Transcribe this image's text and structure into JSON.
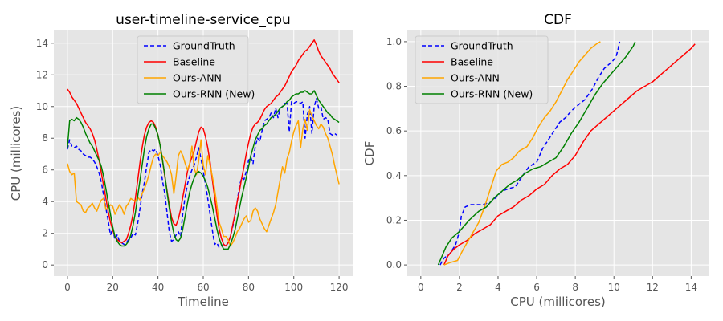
{
  "colors": {
    "ground_truth": "#0000ff",
    "baseline": "#ff0000",
    "ours_ann": "#ffa500",
    "ours_rnn": "#008000",
    "plot_background": "#e5e5e5",
    "grid": "#ffffff"
  },
  "chart_data": [
    {
      "type": "line",
      "title": "user-timeline-service_cpu",
      "xlabel": "Timeline",
      "ylabel": "CPU (millicores)",
      "xlim": [
        -6,
        126
      ],
      "ylim": [
        -0.7,
        14.8
      ],
      "xticks": [
        0,
        20,
        40,
        60,
        80,
        100,
        120
      ],
      "yticks": [
        0,
        2,
        4,
        6,
        8,
        10,
        12,
        14
      ],
      "grid": true,
      "legend_position": "upper-center",
      "x_start": 0,
      "x_step": 1,
      "series": [
        {
          "name": "GroundTruth",
          "color_key": "ground_truth",
          "dash": "dashed",
          "values": [
            7.3,
            7.9,
            7.5,
            7.4,
            7.5,
            7.3,
            7.2,
            7.0,
            6.9,
            6.8,
            6.8,
            6.7,
            6.5,
            6.2,
            5.8,
            5.2,
            4.4,
            3.6,
            2.8,
            1.9,
            2.3,
            1.6,
            1.9,
            1.5,
            1.4,
            1.3,
            1.4,
            1.6,
            1.7,
            2.0,
            1.9,
            2.6,
            3.5,
            4.5,
            5.2,
            6.2,
            7.1,
            7.3,
            7.2,
            7.3,
            6.9,
            6.3,
            5.3,
            4.5,
            3.3,
            2.1,
            1.5,
            1.6,
            1.9,
            2.1,
            1.8,
            3.3,
            4.3,
            5.1,
            5.6,
            6.0,
            6.3,
            6.8,
            7.4,
            6.7,
            5.9,
            5.1,
            4.2,
            3.2,
            2.2,
            1.3,
            1.4,
            1.1,
            1.2,
            1.3,
            1.2,
            1.4,
            1.8,
            2.4,
            3.1,
            4.0,
            5.0,
            5.5,
            5.4,
            5.9,
            6.6,
            6.8,
            6.4,
            7.5,
            8.0,
            7.8,
            8.5,
            9.1,
            9.2,
            9.3,
            9.6,
            9.3,
            9.9,
            9.3,
            9.9,
            10.0,
            10.2,
            10.2,
            8.4,
            10.3,
            10.2,
            10.3,
            10.3,
            10.2,
            10.3,
            8.0,
            9.5,
            10.0,
            8.3,
            10.0,
            10.5,
            9.9,
            10.0,
            9.2,
            9.3,
            9.2,
            8.3,
            8.2,
            8.3,
            8.2
          ]
        },
        {
          "name": "Baseline",
          "color_key": "baseline",
          "dash": "solid",
          "values": [
            11.1,
            10.9,
            10.6,
            10.4,
            10.2,
            9.9,
            9.6,
            9.3,
            9.0,
            8.8,
            8.6,
            8.3,
            7.9,
            7.3,
            6.6,
            5.8,
            5.0,
            4.2,
            3.4,
            2.7,
            2.2,
            1.8,
            1.6,
            1.5,
            1.4,
            1.5,
            1.6,
            2.0,
            2.5,
            3.2,
            4.2,
            5.3,
            6.4,
            7.4,
            8.2,
            8.7,
            9.0,
            9.1,
            9.0,
            8.7,
            8.2,
            7.5,
            6.6,
            5.6,
            4.7,
            3.8,
            3.0,
            2.6,
            2.5,
            2.9,
            3.5,
            4.3,
            5.1,
            5.9,
            6.4,
            6.8,
            7.2,
            7.8,
            8.4,
            8.7,
            8.6,
            8.1,
            7.4,
            6.5,
            5.4,
            4.3,
            3.2,
            2.3,
            1.7,
            1.3,
            1.2,
            1.4,
            1.8,
            2.5,
            3.2,
            4.0,
            4.7,
            5.5,
            6.2,
            7.0,
            7.7,
            8.3,
            8.7,
            8.9,
            9.0,
            9.2,
            9.5,
            9.8,
            10.0,
            10.1,
            10.2,
            10.4,
            10.6,
            10.7,
            10.9,
            11.1,
            11.3,
            11.6,
            11.9,
            12.2,
            12.4,
            12.6,
            12.9,
            13.1,
            13.3,
            13.5,
            13.6,
            13.8,
            14.0,
            14.2,
            13.9,
            13.5,
            13.2,
            13.0,
            12.8,
            12.6,
            12.4,
            12.1,
            11.9,
            11.7,
            11.5
          ]
        },
        {
          "name": "Ours-ANN",
          "color_key": "ours_ann",
          "dash": "solid",
          "values": [
            6.4,
            5.9,
            5.7,
            5.8,
            4.0,
            3.9,
            3.8,
            3.4,
            3.3,
            3.6,
            3.7,
            3.9,
            3.6,
            3.4,
            3.8,
            4.1,
            4.2,
            3.5,
            3.6,
            3.8,
            3.7,
            3.2,
            3.5,
            3.8,
            3.6,
            3.2,
            3.7,
            3.9,
            4.2,
            4.1,
            4.0,
            4.3,
            4.1,
            4.5,
            4.8,
            5.2,
            5.7,
            6.3,
            6.8,
            7.0,
            6.9,
            7.1,
            6.9,
            6.7,
            6.5,
            6.2,
            5.7,
            4.5,
            5.6,
            6.9,
            7.2,
            6.9,
            6.4,
            6.0,
            6.4,
            7.5,
            6.1,
            5.7,
            6.6,
            7.9,
            6.3,
            5.7,
            6.9,
            6.3,
            5.6,
            4.8,
            3.8,
            2.7,
            2.3,
            1.8,
            1.8,
            1.6,
            1.2,
            1.4,
            1.7,
            2.1,
            2.3,
            2.6,
            2.9,
            3.1,
            2.7,
            2.8,
            3.4,
            3.6,
            3.4,
            2.9,
            2.6,
            2.3,
            2.1,
            2.5,
            2.9,
            3.3,
            3.8,
            4.6,
            5.4,
            6.2,
            5.8,
            6.7,
            7.1,
            7.8,
            8.4,
            8.8,
            9.1,
            7.4,
            8.6,
            9.2,
            8.5,
            9.8,
            9.4,
            9.1,
            8.8,
            8.6,
            8.9,
            8.7,
            8.3,
            8.0,
            7.5,
            7.0,
            6.3,
            5.7,
            5.1
          ]
        },
        {
          "name": "Ours-RNN (New)",
          "color_key": "ours_rnn",
          "dash": "solid",
          "values": [
            7.4,
            9.1,
            9.2,
            9.1,
            9.3,
            9.2,
            9.0,
            8.7,
            8.3,
            8.0,
            7.7,
            7.5,
            7.2,
            6.9,
            6.6,
            6.2,
            5.6,
            4.8,
            4.0,
            3.2,
            2.4,
            1.8,
            1.5,
            1.3,
            1.2,
            1.2,
            1.3,
            1.5,
            1.9,
            2.5,
            3.3,
            4.3,
            5.3,
            6.3,
            7.3,
            8.1,
            8.6,
            8.9,
            8.9,
            8.6,
            8.2,
            7.5,
            6.6,
            5.7,
            4.6,
            3.6,
            2.7,
            2.0,
            1.6,
            1.5,
            1.7,
            2.3,
            3.1,
            3.9,
            4.6,
            5.1,
            5.5,
            5.8,
            5.9,
            5.8,
            5.6,
            5.3,
            4.9,
            4.3,
            3.7,
            3.0,
            2.3,
            1.7,
            1.3,
            1.0,
            1.0,
            1.0,
            1.3,
            1.7,
            2.2,
            2.9,
            3.6,
            4.3,
            4.9,
            5.5,
            6.2,
            6.9,
            7.4,
            7.9,
            8.2,
            8.5,
            8.6,
            8.8,
            8.9,
            9.1,
            9.3,
            9.4,
            9.5,
            9.7,
            9.9,
            10.0,
            10.1,
            10.3,
            10.4,
            10.6,
            10.7,
            10.8,
            10.8,
            10.9,
            10.9,
            11.0,
            10.9,
            10.8,
            10.8,
            11.0,
            10.7,
            10.4,
            10.2,
            10.0,
            9.8,
            9.6,
            9.5,
            9.3,
            9.2,
            9.1,
            9.0
          ]
        }
      ]
    },
    {
      "type": "line",
      "title": "CDF",
      "xlabel": "CPU (millicores)",
      "ylabel": "CDF",
      "xlim": [
        -0.7,
        14.9
      ],
      "ylim": [
        -0.05,
        1.05
      ],
      "xticks": [
        0,
        2,
        4,
        6,
        8,
        10,
        12,
        14
      ],
      "yticks": [
        0.0,
        0.2,
        0.4,
        0.6,
        0.8,
        1.0
      ],
      "ytick_labels": [
        "0.0",
        "0.2",
        "0.4",
        "0.6",
        "0.8",
        "1.0"
      ],
      "grid": true,
      "legend_position": "upper-left",
      "series": [
        {
          "name": "GroundTruth",
          "color_key": "ground_truth",
          "dash": "dashed",
          "x": [
            1.0,
            1.2,
            1.5,
            1.8,
            2.0,
            2.1,
            2.3,
            2.6,
            3.2,
            3.6,
            4.0,
            4.2,
            4.5,
            4.9,
            5.2,
            5.6,
            6.0,
            6.3,
            6.6,
            6.9,
            7.2,
            7.5,
            7.8,
            8.2,
            8.5,
            8.9,
            9.2,
            9.5,
            9.9,
            10.1,
            10.2,
            10.3
          ],
          "y": [
            0.0,
            0.03,
            0.05,
            0.09,
            0.15,
            0.22,
            0.26,
            0.27,
            0.27,
            0.28,
            0.31,
            0.33,
            0.34,
            0.35,
            0.39,
            0.44,
            0.46,
            0.52,
            0.56,
            0.6,
            0.64,
            0.66,
            0.69,
            0.72,
            0.74,
            0.79,
            0.84,
            0.88,
            0.91,
            0.93,
            0.96,
            1.0
          ]
        },
        {
          "name": "Baseline",
          "color_key": "baseline",
          "dash": "solid",
          "x": [
            1.2,
            1.4,
            1.7,
            2.0,
            2.4,
            2.8,
            3.2,
            3.6,
            4.0,
            4.4,
            4.8,
            5.2,
            5.6,
            6.0,
            6.4,
            6.8,
            7.2,
            7.6,
            8.0,
            8.4,
            8.8,
            9.2,
            9.6,
            10.0,
            10.4,
            10.8,
            11.2,
            11.6,
            12.0,
            12.4,
            12.8,
            13.2,
            13.6,
            14.0,
            14.2
          ],
          "y": [
            0.0,
            0.04,
            0.07,
            0.09,
            0.11,
            0.14,
            0.16,
            0.18,
            0.22,
            0.24,
            0.26,
            0.29,
            0.31,
            0.34,
            0.36,
            0.4,
            0.43,
            0.45,
            0.49,
            0.55,
            0.6,
            0.63,
            0.66,
            0.69,
            0.72,
            0.75,
            0.78,
            0.8,
            0.82,
            0.85,
            0.88,
            0.91,
            0.94,
            0.97,
            0.99
          ]
        },
        {
          "name": "Ours-ANN",
          "color_key": "ours_ann",
          "dash": "solid",
          "x": [
            1.2,
            1.5,
            1.9,
            2.2,
            2.6,
            3.0,
            3.3,
            3.6,
            3.9,
            4.2,
            4.5,
            4.8,
            5.1,
            5.5,
            5.8,
            6.1,
            6.4,
            6.7,
            7.0,
            7.3,
            7.6,
            7.9,
            8.2,
            8.5,
            8.8,
            9.1,
            9.3
          ],
          "y": [
            0.0,
            0.01,
            0.02,
            0.07,
            0.13,
            0.19,
            0.26,
            0.34,
            0.42,
            0.45,
            0.46,
            0.48,
            0.51,
            0.53,
            0.57,
            0.62,
            0.66,
            0.69,
            0.73,
            0.78,
            0.83,
            0.87,
            0.91,
            0.94,
            0.97,
            0.99,
            1.0
          ]
        },
        {
          "name": "Ours-RNN (New)",
          "color_key": "ours_rnn",
          "dash": "solid",
          "x": [
            0.9,
            1.1,
            1.3,
            1.6,
            2.0,
            2.5,
            3.0,
            3.4,
            3.8,
            4.2,
            4.6,
            5.0,
            5.4,
            5.8,
            6.2,
            6.6,
            7.0,
            7.4,
            7.8,
            8.2,
            8.6,
            9.0,
            9.4,
            9.8,
            10.2,
            10.6,
            11.0,
            11.1
          ],
          "y": [
            0.0,
            0.04,
            0.08,
            0.12,
            0.15,
            0.2,
            0.24,
            0.26,
            0.3,
            0.33,
            0.36,
            0.38,
            0.41,
            0.43,
            0.44,
            0.46,
            0.48,
            0.53,
            0.59,
            0.64,
            0.7,
            0.76,
            0.81,
            0.85,
            0.89,
            0.93,
            0.98,
            1.0
          ]
        }
      ]
    }
  ]
}
